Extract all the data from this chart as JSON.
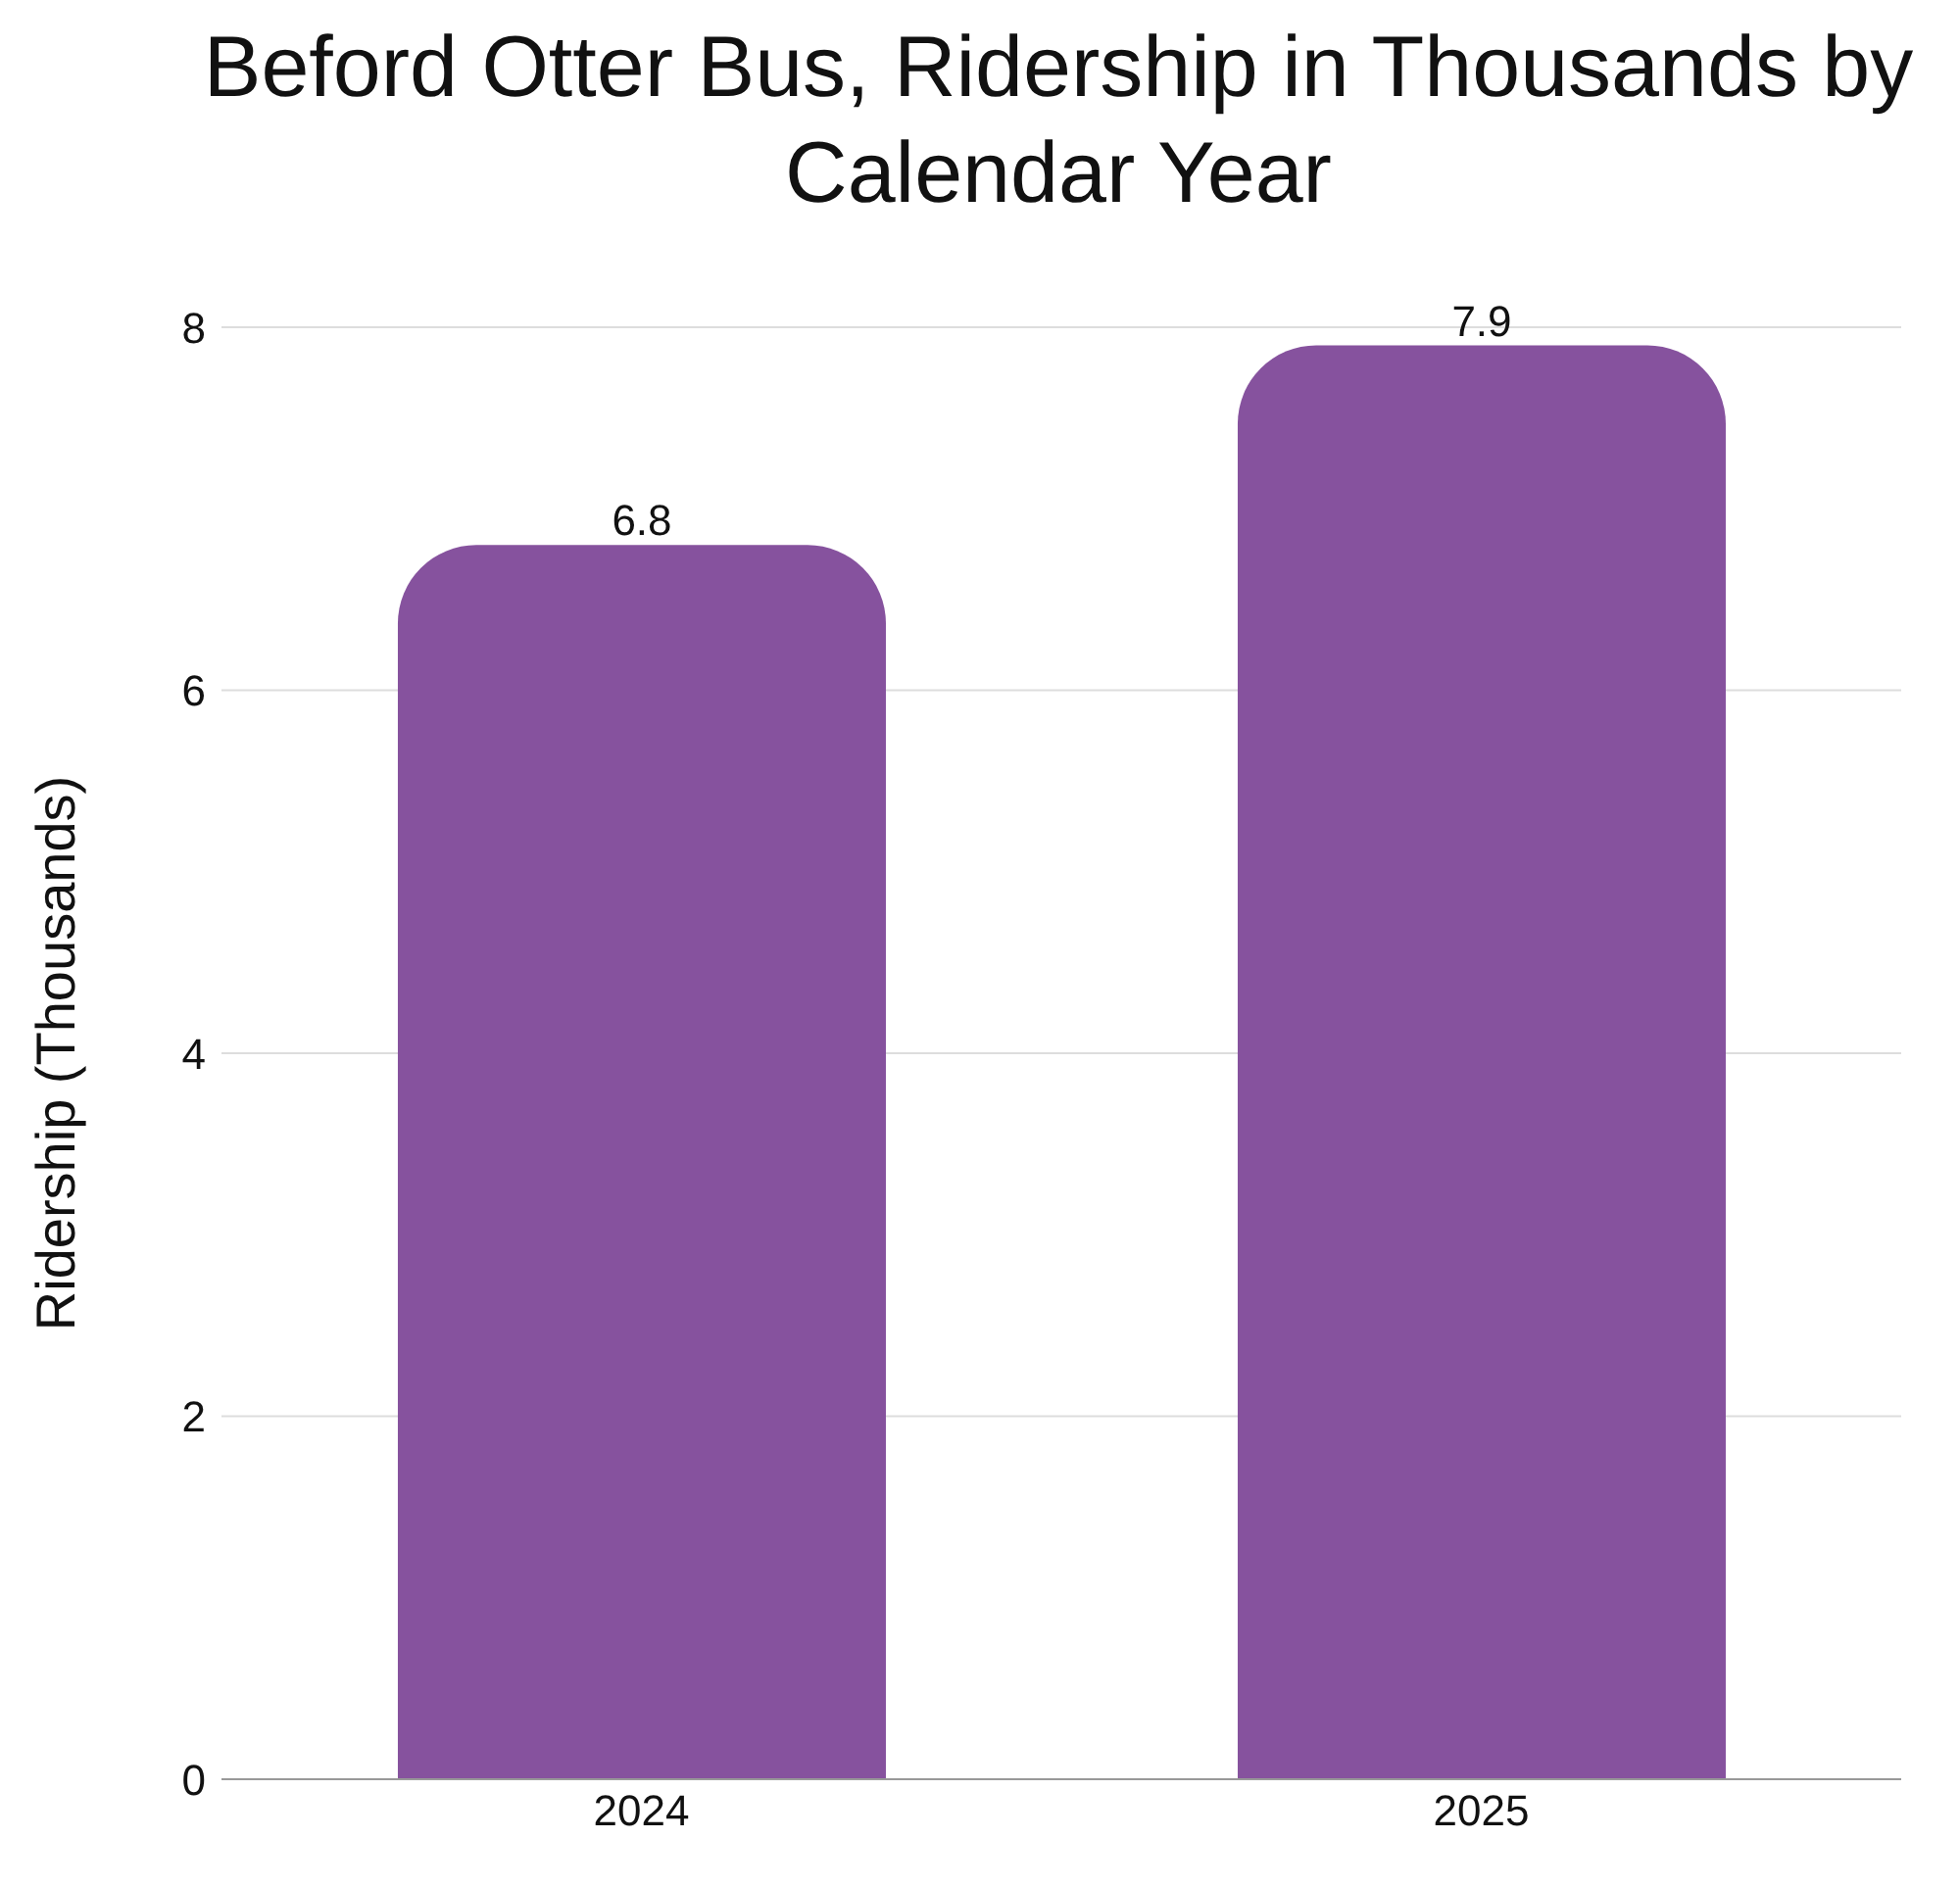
{
  "chart_data": {
    "type": "bar",
    "title": "Beford Otter Bus, Ridership in Thousands by Calendar Year",
    "ylabel": "Ridership (Thousands)",
    "categories": [
      "2024",
      "2025"
    ],
    "values": [
      6.8,
      7.9
    ],
    "color": "#86529e",
    "ylim": [
      0,
      8
    ],
    "yticks": [
      0,
      2,
      4,
      6,
      8
    ],
    "grid": "y",
    "data_labels": true
  }
}
